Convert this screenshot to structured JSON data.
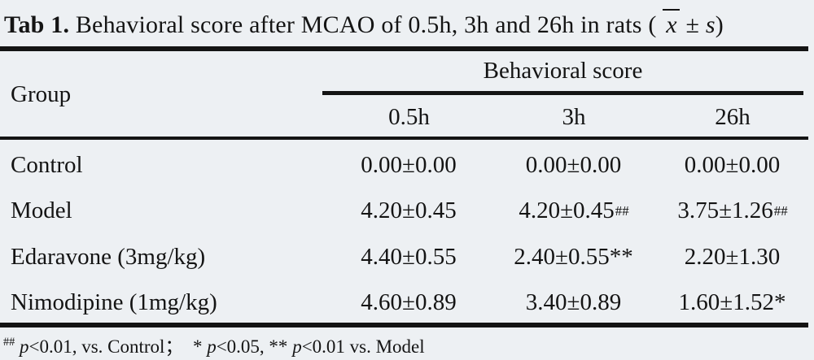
{
  "colors": {
    "background": "#edf0f3",
    "rule": "#141414",
    "text": "#141414"
  },
  "title": {
    "label": "Tab 1.",
    "body": " Behavioral score after MCAO of 0.5h, 3h and 26h in rats ( ",
    "xbar": "x",
    "pm": " ± ",
    "s": "s",
    "close": ")"
  },
  "table": {
    "group_header": "Group",
    "spanner": "Behavioral score",
    "columns": [
      "0.5h",
      "3h",
      "26h"
    ],
    "rows": [
      {
        "group": "Control",
        "values": [
          {
            "base": "0.00±0.00",
            "sup": ""
          },
          {
            "base": "0.00±0.00",
            "sup": ""
          },
          {
            "base": "0.00±0.00",
            "sup": ""
          }
        ]
      },
      {
        "group": "Model",
        "values": [
          {
            "base": "4.20±0.45",
            "sup": ""
          },
          {
            "base": "4.20±0.45",
            "sup": "##"
          },
          {
            "base": "3.75±1.26",
            "sup": "##"
          }
        ]
      },
      {
        "group": "Edaravone (3mg/kg)",
        "values": [
          {
            "base": "4.40±0.55",
            "sup": ""
          },
          {
            "base": "2.40±0.55**",
            "sup": ""
          },
          {
            "base": "2.20±1.30",
            "sup": ""
          }
        ]
      },
      {
        "group": "Nimodipine (1mg/kg)",
        "values": [
          {
            "base": "4.60±0.89",
            "sup": ""
          },
          {
            "base": "3.40±0.89",
            "sup": ""
          },
          {
            "base": "1.60±1.52*",
            "sup": ""
          }
        ]
      }
    ]
  },
  "footnote": {
    "sup": "##",
    "s1": " ",
    "p1": "p",
    "s2": "<0.01, vs. Control；  * ",
    "p2": "p",
    "s3": "<0.05, ** ",
    "p3": "p",
    "s4": "<0.01 vs. Model"
  }
}
